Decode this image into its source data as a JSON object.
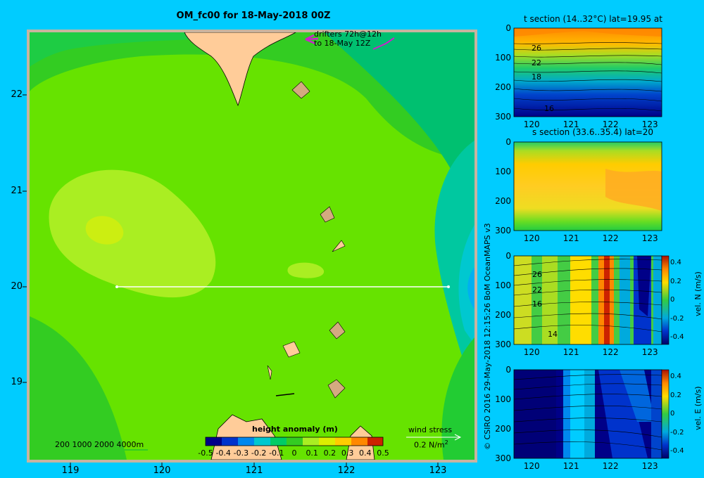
{
  "title": "OM_fc00 for 18-May-2018 00Z",
  "credit": "© CSIRO 2016  29-May-2018 12:15:26 BoM OceanMAPS v3",
  "drifters_label_1": "drifters 72h@12h",
  "drifters_label_2": "to 18-May 12Z",
  "depth_legend": "200  1000  2000  4000m",
  "wind_label": "wind stress",
  "wind_scale": "0.2 N/m",
  "wind_scale_exp": "2",
  "colors": {
    "background": "#00ccff",
    "land": "#ffcc99",
    "frame": "#c8b4a0"
  },
  "chart_data": [
    {
      "type": "heatmap",
      "name": "map",
      "x_ticks": [
        "119",
        "120",
        "121",
        "122",
        "123"
      ],
      "y_ticks": [
        "22",
        "21",
        "20",
        "19"
      ],
      "xlim": [
        118.5,
        123.5
      ],
      "ylim": [
        18.3,
        22.65
      ],
      "section_line": {
        "lat": 20,
        "lon_start": 119.5,
        "lon_end": 123.2
      },
      "colorbar": {
        "label": "height anomaly  (m)",
        "ticks": [
          "-0.5",
          "-0.4",
          "-0.3",
          "-0.2",
          "-0.1",
          "0",
          "0.1",
          "0.2",
          "0.3",
          "0.4",
          "0.5"
        ],
        "range": [
          -0.5,
          0.5
        ]
      }
    },
    {
      "type": "heatmap",
      "name": "t-section",
      "title": "t section (14..32°C) lat=19.95 at",
      "x_ticks": [
        "120",
        "121",
        "122",
        "123"
      ],
      "y_ticks": [
        "0",
        "100",
        "200",
        "300"
      ],
      "contour_labels": [
        "26",
        "22",
        "18",
        "16"
      ]
    },
    {
      "type": "heatmap",
      "name": "s-section",
      "title": "s section (33.6..35.4) lat=20",
      "x_ticks": [
        "120",
        "121",
        "122",
        "123"
      ],
      "y_ticks": [
        "0",
        "100",
        "200",
        "300"
      ]
    },
    {
      "type": "heatmap",
      "name": "vN-section",
      "x_ticks": [
        "120",
        "121",
        "122",
        "123"
      ],
      "y_ticks": [
        "0",
        "100",
        "200",
        "300"
      ],
      "contour_labels": [
        "26",
        "22",
        "16",
        "14"
      ],
      "colorbar": {
        "label": "vel. N (m/s)",
        "ticks": [
          "0.4",
          "0.2",
          "0",
          "-0.2",
          "-0.4"
        ],
        "range": [
          -0.4,
          0.4
        ]
      }
    },
    {
      "type": "heatmap",
      "name": "vE-section",
      "x_ticks": [
        "120",
        "121",
        "122",
        "123"
      ],
      "y_ticks": [
        "0",
        "100",
        "200",
        "300"
      ],
      "colorbar": {
        "label": "vel. E (m/s)",
        "ticks": [
          "0.4",
          "0.2",
          "0",
          "-0.2",
          "-0.4"
        ],
        "range": [
          -0.4,
          0.4
        ]
      }
    }
  ]
}
